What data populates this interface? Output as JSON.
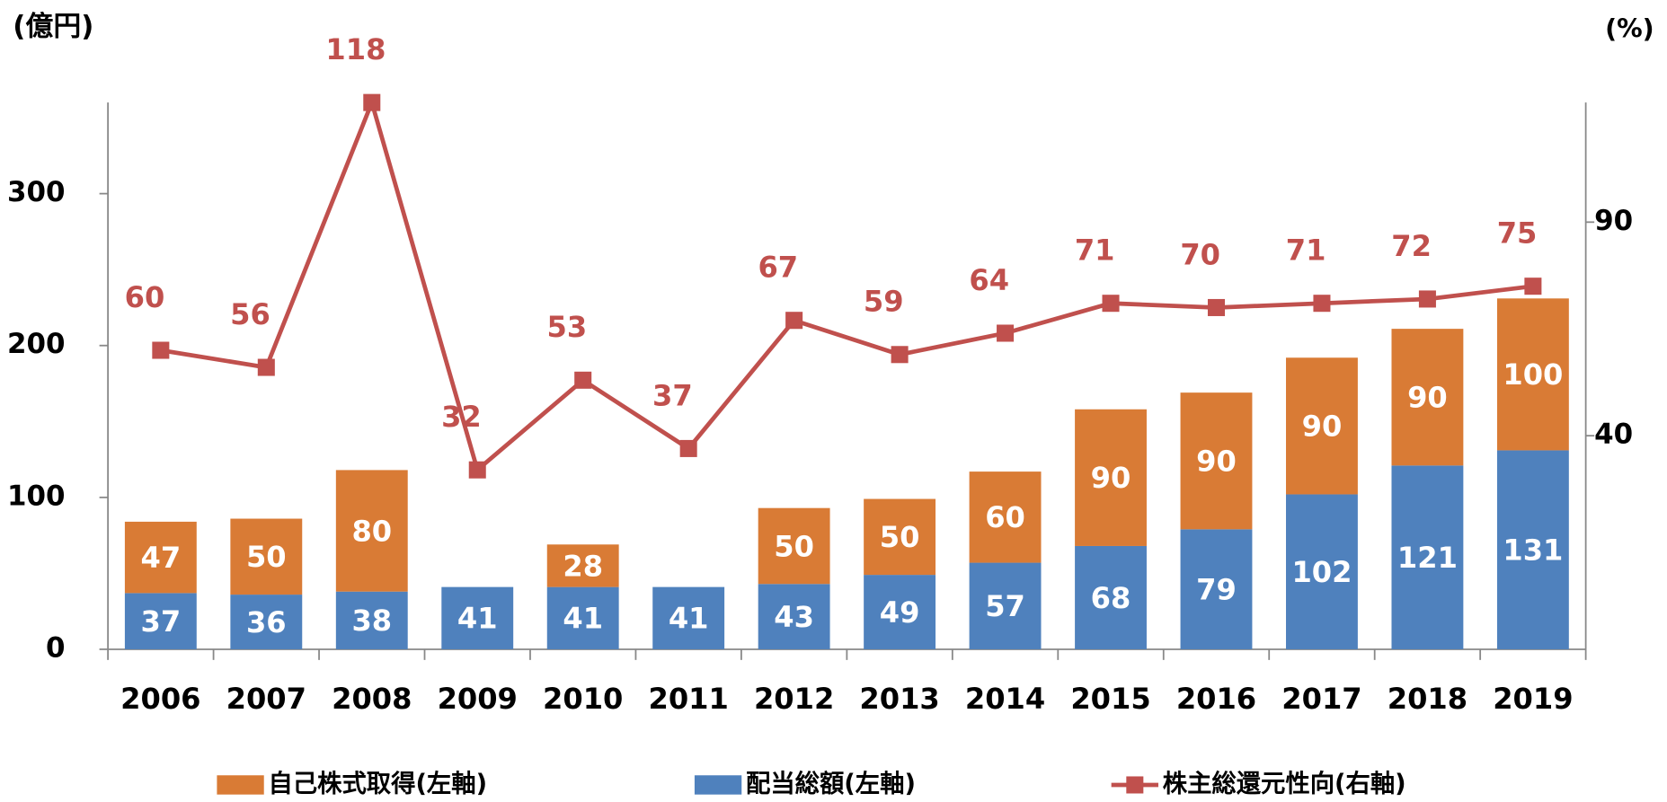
{
  "chart_data": {
    "type": "bar+line",
    "y_unit_label": "(億円)",
    "y2_unit_label": "(%)",
    "categories": [
      "2006",
      "2007",
      "2008",
      "2009",
      "2010",
      "2011",
      "2012",
      "2013",
      "2014",
      "2015",
      "2016",
      "2017",
      "2018",
      "2019"
    ],
    "ylim": [
      0,
      360
    ],
    "yticks": [
      0,
      100,
      200,
      300
    ],
    "y2lim": [
      -10,
      118
    ],
    "y2ticks": [
      40,
      90
    ],
    "series": [
      {
        "name": "自己株式取得(左軸)",
        "type": "bar",
        "color": "#d97b35",
        "values": [
          47,
          50,
          80,
          null,
          28,
          null,
          50,
          50,
          60,
          90,
          90,
          90,
          90,
          100
        ]
      },
      {
        "name": "配当総額(左軸)",
        "type": "bar",
        "color": "#4f81bd",
        "values": [
          37,
          36,
          38,
          41,
          41,
          41,
          43,
          49,
          57,
          68,
          79,
          102,
          121,
          131
        ]
      },
      {
        "name": "株主総還元性向(右軸)",
        "type": "line",
        "axis": "y2",
        "color": "#c0504d",
        "values": [
          60,
          56,
          118,
          32,
          53,
          37,
          67,
          59,
          64,
          71,
          70,
          71,
          72,
          75
        ]
      }
    ]
  }
}
